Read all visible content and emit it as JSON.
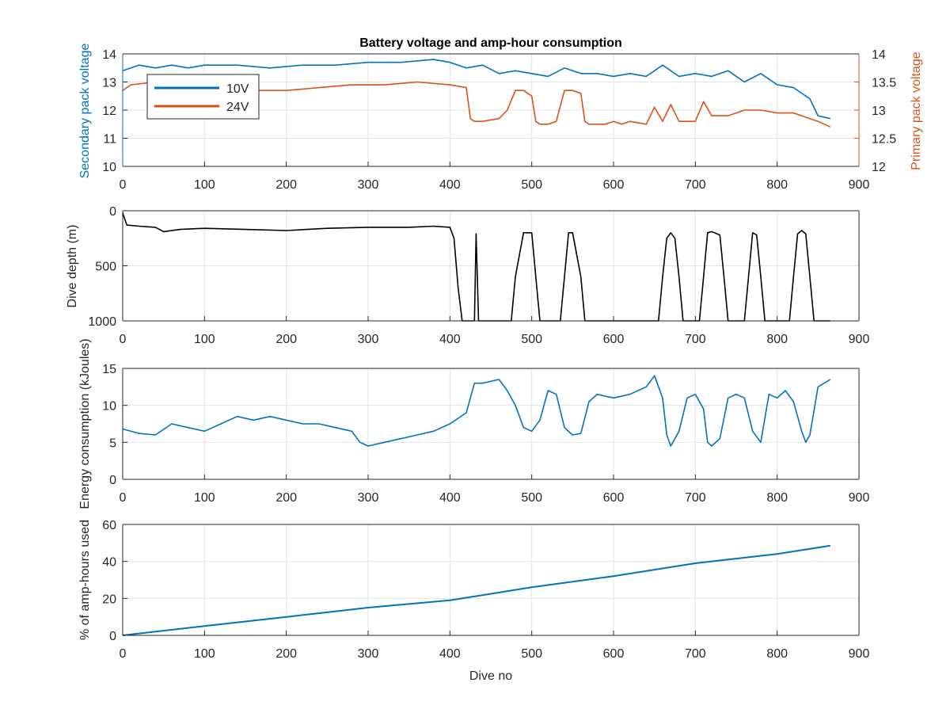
{
  "colors": {
    "blue": "#0072BD",
    "orange": "#D95319",
    "black": "#000000",
    "axis": "#262626",
    "grid": "#e3e3e3"
  },
  "chart_data": [
    {
      "type": "line",
      "title": "Battery voltage and amp-hour consumption",
      "xlabel": "",
      "ylabel": "Secondary pack voltage",
      "ylabel_right": "Primary pack voltage",
      "xlim": [
        0,
        900
      ],
      "ylim": [
        10,
        14
      ],
      "ylim_right": [
        12,
        14
      ],
      "xticks": [
        "0",
        "100",
        "200",
        "300",
        "400",
        "500",
        "600",
        "700",
        "800",
        "900"
      ],
      "yticks": [
        "10",
        "11",
        "12",
        "13",
        "14"
      ],
      "yticks_right": [
        "12",
        "12.5",
        "13",
        "13.5",
        "14"
      ],
      "grid": true,
      "legend": {
        "placement": "top-left",
        "entries": [
          "10V",
          "24V"
        ]
      },
      "series": [
        {
          "name": "10V",
          "axis": "left",
          "x": [
            0,
            20,
            40,
            60,
            80,
            100,
            140,
            180,
            220,
            260,
            300,
            340,
            380,
            400,
            420,
            440,
            460,
            480,
            500,
            520,
            540,
            560,
            580,
            600,
            620,
            640,
            660,
            680,
            700,
            720,
            740,
            760,
            780,
            800,
            820,
            840,
            850,
            865
          ],
          "y": [
            13.4,
            13.6,
            13.5,
            13.6,
            13.5,
            13.6,
            13.6,
            13.5,
            13.6,
            13.6,
            13.7,
            13.7,
            13.8,
            13.7,
            13.5,
            13.6,
            13.3,
            13.4,
            13.3,
            13.2,
            13.5,
            13.3,
            13.3,
            13.2,
            13.3,
            13.2,
            13.6,
            13.2,
            13.3,
            13.2,
            13.4,
            13.0,
            13.3,
            12.9,
            12.8,
            12.4,
            11.8,
            11.7
          ]
        },
        {
          "name": "24V",
          "axis": "right",
          "x": [
            0,
            10,
            40,
            80,
            120,
            160,
            200,
            240,
            280,
            320,
            360,
            400,
            420,
            425,
            430,
            440,
            460,
            470,
            480,
            490,
            500,
            505,
            510,
            520,
            530,
            540,
            550,
            560,
            565,
            570,
            590,
            600,
            610,
            620,
            640,
            650,
            660,
            670,
            680,
            700,
            710,
            720,
            740,
            760,
            780,
            800,
            820,
            840,
            850,
            865
          ],
          "y": [
            13.35,
            13.45,
            13.5,
            13.4,
            13.4,
            13.35,
            13.35,
            13.4,
            13.45,
            13.45,
            13.5,
            13.45,
            13.4,
            12.85,
            12.8,
            12.8,
            12.85,
            13.0,
            13.35,
            13.35,
            13.25,
            12.8,
            12.75,
            12.75,
            12.8,
            13.35,
            13.35,
            13.3,
            12.8,
            12.75,
            12.75,
            12.8,
            12.75,
            12.8,
            12.75,
            13.05,
            12.8,
            13.1,
            12.8,
            12.8,
            13.15,
            12.9,
            12.9,
            13.0,
            13.0,
            12.95,
            12.95,
            12.85,
            12.8,
            12.7
          ]
        }
      ]
    },
    {
      "type": "line",
      "xlabel": "",
      "ylabel": "Dive depth (m)",
      "xlim": [
        0,
        900
      ],
      "ylim": [
        0,
        1000
      ],
      "y_reversed": true,
      "xticks": [
        "0",
        "100",
        "200",
        "300",
        "400",
        "500",
        "600",
        "700",
        "800",
        "900"
      ],
      "yticks": [
        "0",
        "500",
        "1000"
      ],
      "grid": true,
      "series": [
        {
          "name": "",
          "x": [
            0,
            5,
            20,
            40,
            50,
            70,
            100,
            150,
            200,
            250,
            300,
            350,
            380,
            400,
            405,
            410,
            415,
            430,
            432,
            435,
            440,
            475,
            480,
            490,
            500,
            505,
            510,
            535,
            540,
            545,
            550,
            560,
            565,
            570,
            600,
            650,
            655,
            660,
            665,
            670,
            675,
            680,
            685,
            690,
            705,
            710,
            715,
            720,
            730,
            735,
            740,
            760,
            765,
            770,
            775,
            780,
            785,
            790,
            810,
            815,
            820,
            825,
            830,
            835,
            840,
            845,
            850,
            865
          ],
          "y": [
            20,
            130,
            140,
            150,
            190,
            170,
            160,
            170,
            180,
            160,
            150,
            150,
            140,
            150,
            250,
            700,
            1000,
            1000,
            210,
            1000,
            1000,
            1000,
            600,
            200,
            200,
            600,
            1000,
            1000,
            600,
            200,
            200,
            600,
            1000,
            1000,
            1000,
            1000,
            1000,
            600,
            250,
            200,
            250,
            600,
            1000,
            1000,
            1000,
            600,
            200,
            190,
            220,
            600,
            1000,
            1000,
            600,
            200,
            220,
            600,
            1000,
            1000,
            1000,
            1000,
            600,
            210,
            180,
            210,
            600,
            1000,
            1000,
            1000
          ]
        }
      ]
    },
    {
      "type": "line",
      "xlabel": "",
      "ylabel": "Energy consumption (kJoules)",
      "xlim": [
        0,
        900
      ],
      "ylim": [
        0,
        15
      ],
      "xticks": [
        "0",
        "100",
        "200",
        "300",
        "400",
        "500",
        "600",
        "700",
        "800",
        "900"
      ],
      "yticks": [
        "0",
        "5",
        "10",
        "15"
      ],
      "grid": true,
      "series": [
        {
          "name": "",
          "x": [
            0,
            20,
            40,
            60,
            80,
            100,
            120,
            140,
            160,
            180,
            200,
            220,
            240,
            260,
            280,
            290,
            300,
            320,
            340,
            360,
            380,
            400,
            420,
            430,
            440,
            460,
            470,
            480,
            490,
            500,
            510,
            520,
            530,
            540,
            550,
            560,
            570,
            580,
            600,
            620,
            640,
            650,
            660,
            665,
            670,
            680,
            690,
            700,
            710,
            715,
            720,
            730,
            740,
            750,
            760,
            770,
            780,
            790,
            800,
            810,
            820,
            830,
            835,
            840,
            850,
            865
          ],
          "y": [
            6.8,
            6.2,
            6.0,
            7.5,
            7.0,
            6.5,
            7.5,
            8.5,
            8.0,
            8.5,
            8.0,
            7.5,
            7.5,
            7.0,
            6.5,
            5.0,
            4.5,
            5.0,
            5.5,
            6.0,
            6.5,
            7.5,
            9.0,
            13.0,
            13.0,
            13.5,
            12.0,
            10.0,
            7.0,
            6.5,
            8.0,
            12.0,
            11.5,
            7.0,
            6.0,
            6.2,
            10.5,
            11.5,
            11.0,
            11.5,
            12.5,
            14.0,
            11.0,
            6.0,
            4.5,
            6.5,
            11.0,
            11.5,
            9.5,
            5.0,
            4.5,
            5.5,
            11.0,
            11.5,
            11.0,
            6.5,
            5.0,
            11.5,
            11.0,
            12.0,
            10.5,
            6.5,
            5.0,
            6.0,
            12.5,
            13.5
          ]
        }
      ]
    },
    {
      "type": "line",
      "xlabel": "Dive no",
      "ylabel": "% of amp-hours used",
      "xlim": [
        0,
        900
      ],
      "ylim": [
        0,
        60
      ],
      "xticks": [
        "0",
        "100",
        "200",
        "300",
        "400",
        "500",
        "600",
        "700",
        "800",
        "900"
      ],
      "yticks": [
        "0",
        "20",
        "40",
        "60"
      ],
      "grid": true,
      "series": [
        {
          "name": "",
          "x": [
            0,
            100,
            200,
            300,
            400,
            500,
            600,
            700,
            800,
            865
          ],
          "y": [
            0,
            5,
            10,
            15,
            19,
            26,
            32,
            39,
            44,
            48.5
          ]
        }
      ]
    }
  ]
}
